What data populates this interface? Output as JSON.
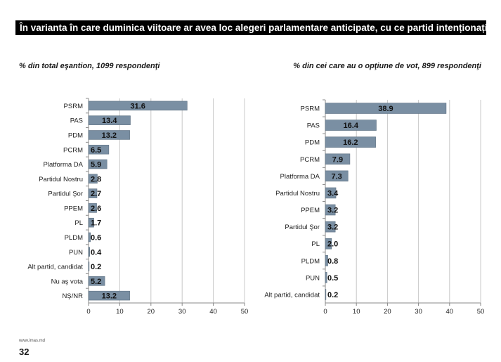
{
  "header": {
    "title": "În varianta în care duminica viitoare ar avea loc alegeri parlamentare anticipate, cu ce partid intenționați să votați?"
  },
  "footer": {
    "url": "www.imas.md",
    "page_number": "32"
  },
  "colors": {
    "bar": "#7a8fa3",
    "grid": "#c8c8c8",
    "title_bg": "#000000"
  },
  "chart_data": [
    {
      "type": "bar",
      "orientation": "horizontal",
      "title": "% din total eşantion, 1099 respondenţi",
      "categories": [
        "PSRM",
        "PAS",
        "PDM",
        "PCRM",
        "Platforma DA",
        "Partidul Nostru",
        "Partidul Şor",
        "PPEM",
        "PL",
        "PLDM",
        "PUN",
        "Alt partid, candidat",
        "Nu aş vota",
        "NŞ/NR"
      ],
      "values": [
        31.6,
        13.4,
        13.2,
        6.5,
        5.9,
        2.8,
        2.7,
        2.6,
        1.7,
        0.6,
        0.4,
        0.2,
        5.2,
        13.2
      ],
      "labels": [
        "31.6",
        "13.4",
        "13.2",
        "6.5",
        "5.9",
        "2.8",
        "2.7",
        "2.6",
        "1.7",
        "0.6",
        "0.4",
        "0.2",
        "5.2",
        "13.2"
      ],
      "xlim": [
        0,
        50
      ],
      "xticks": [
        "0",
        "10",
        "20",
        "30",
        "40",
        "50"
      ],
      "grid": true
    },
    {
      "type": "bar",
      "orientation": "horizontal",
      "title": "% din cei care au o opţiune de vot, 899 respondenţi",
      "categories": [
        "PSRM",
        "PAS",
        "PDM",
        "PCRM",
        "Platforma DA",
        "Partidul Nostru",
        "PPEM",
        "Partidul Şor",
        "PL",
        "PLDM",
        "PUN",
        "Alt partid, candidat"
      ],
      "values": [
        38.9,
        16.4,
        16.2,
        7.9,
        7.3,
        3.4,
        3.2,
        3.2,
        2.0,
        0.8,
        0.5,
        0.2
      ],
      "labels": [
        "38.9",
        "16.4",
        "16.2",
        "7.9",
        "7.3",
        "3.4",
        "3.2",
        "3.2",
        "2.0",
        "0.8",
        "0.5",
        "0.2"
      ],
      "xlim": [
        0,
        50
      ],
      "xticks": [
        "0",
        "10",
        "20",
        "30",
        "40",
        "50"
      ],
      "grid": true
    }
  ]
}
